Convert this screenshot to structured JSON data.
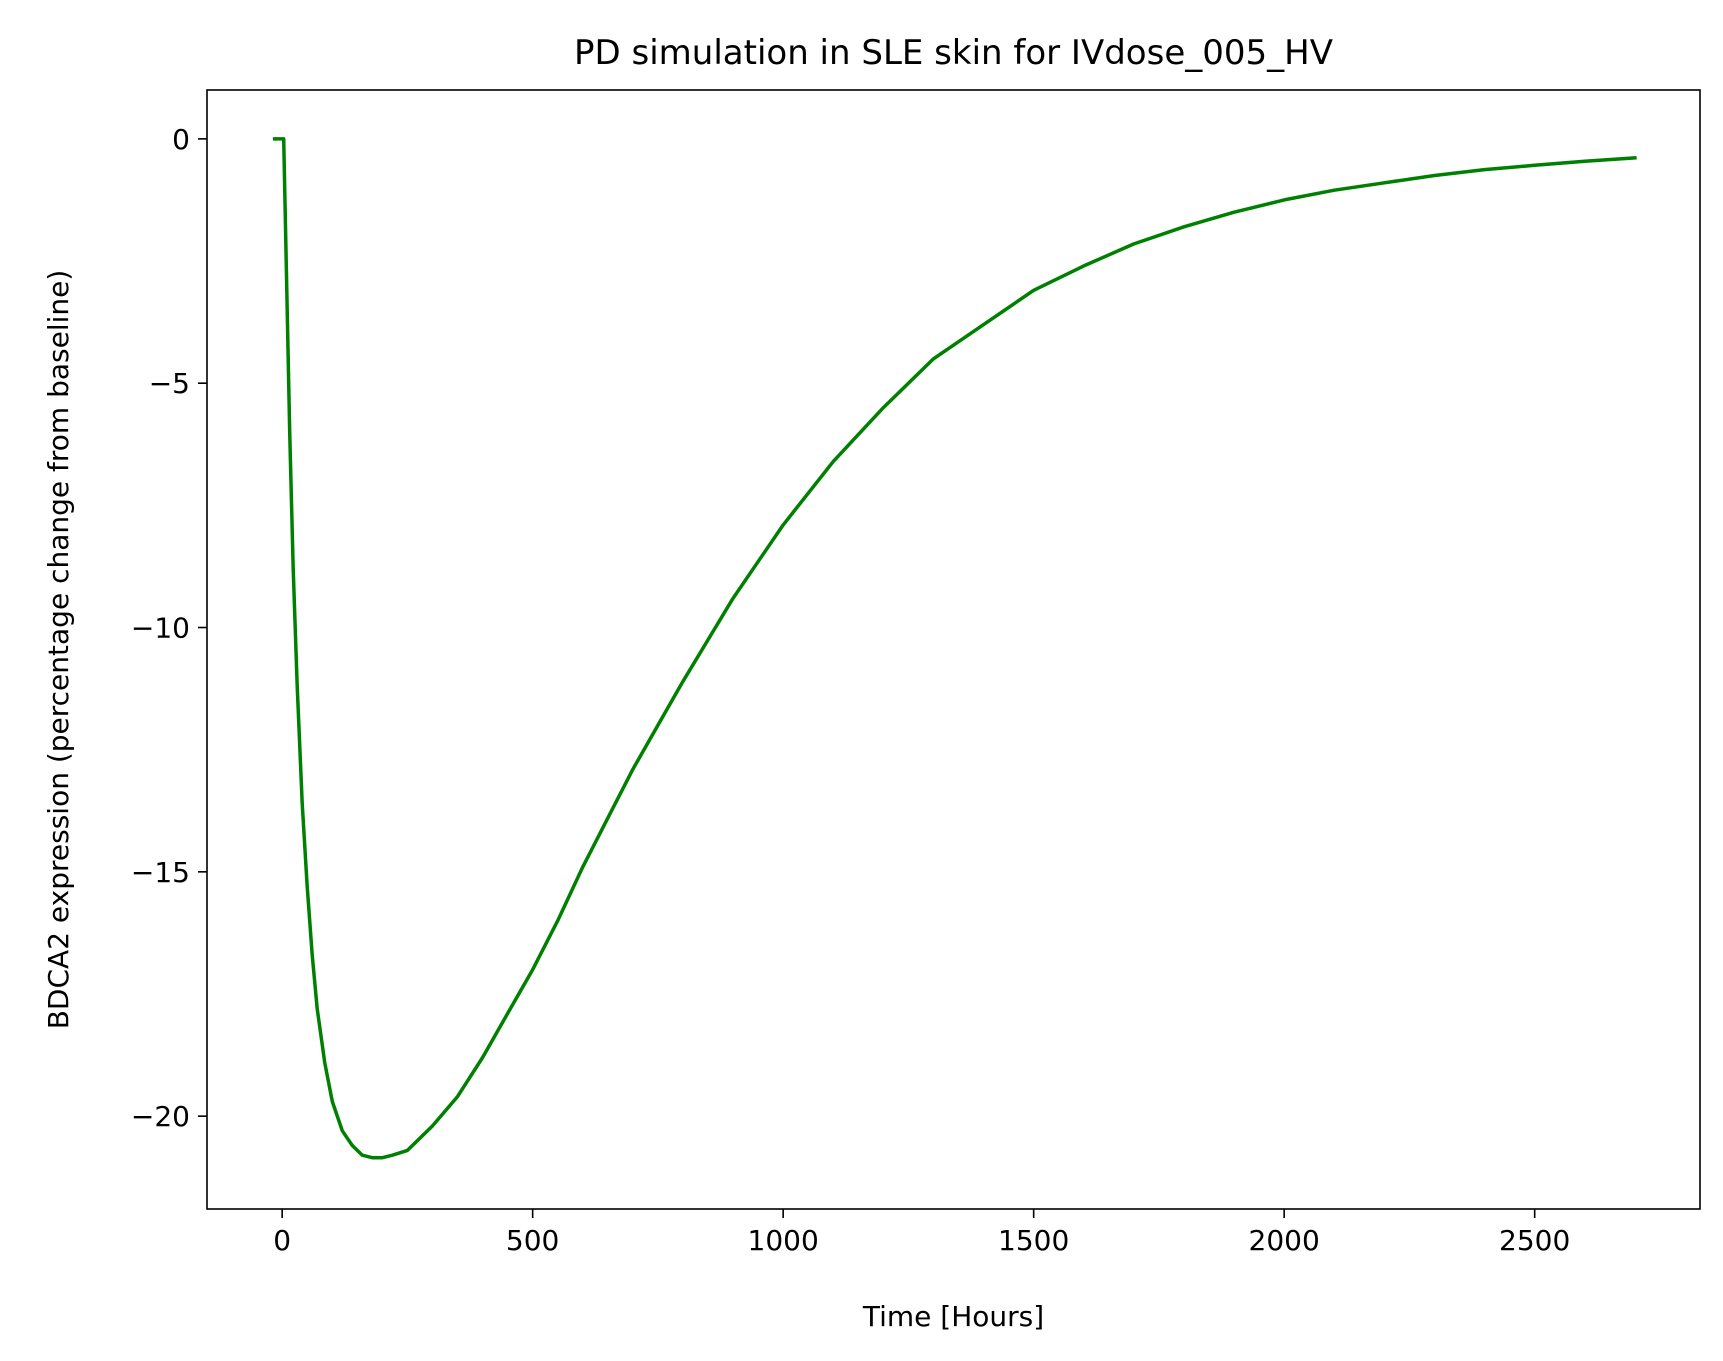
{
  "chart_data": {
    "type": "line",
    "title": "PD simulation in SLE skin for IVdose_005_HV",
    "xlabel": "Time [Hours]",
    "ylabel": "BDCA2 expression (percentage change from baseline)",
    "xlim": [
      -150,
      2830
    ],
    "ylim": [
      -21.9,
      1.0
    ],
    "grid": false,
    "legend": "none",
    "xticks": [
      0,
      500,
      1000,
      1500,
      2000,
      2500
    ],
    "xtick_labels": [
      "0",
      "500",
      "1000",
      "1500",
      "2000",
      "2500"
    ],
    "yticks": [
      0,
      -5,
      -10,
      -15,
      -20
    ],
    "ytick_labels": [
      "0",
      "−5",
      "−10",
      "−15",
      "−20"
    ],
    "series": [
      {
        "color": "#008000",
        "points": [
          [
            -15,
            0.0
          ],
          [
            0,
            0.0
          ],
          [
            3,
            0.0
          ],
          [
            8,
            -2.5
          ],
          [
            15,
            -6.0
          ],
          [
            22,
            -8.8
          ],
          [
            30,
            -11.2
          ],
          [
            40,
            -13.6
          ],
          [
            50,
            -15.3
          ],
          [
            60,
            -16.7
          ],
          [
            70,
            -17.8
          ],
          [
            85,
            -18.9
          ],
          [
            100,
            -19.7
          ],
          [
            120,
            -20.3
          ],
          [
            140,
            -20.6
          ],
          [
            160,
            -20.8
          ],
          [
            180,
            -20.85
          ],
          [
            200,
            -20.85
          ],
          [
            220,
            -20.8
          ],
          [
            250,
            -20.7
          ],
          [
            300,
            -20.2
          ],
          [
            350,
            -19.6
          ],
          [
            400,
            -18.8
          ],
          [
            450,
            -17.9
          ],
          [
            500,
            -17.0
          ],
          [
            550,
            -16.0
          ],
          [
            600,
            -14.9
          ],
          [
            650,
            -13.9
          ],
          [
            700,
            -12.9
          ],
          [
            750,
            -12.0
          ],
          [
            800,
            -11.1
          ],
          [
            900,
            -9.4
          ],
          [
            1000,
            -7.9
          ],
          [
            1100,
            -6.6
          ],
          [
            1200,
            -5.5
          ],
          [
            1300,
            -4.5
          ],
          [
            1400,
            -3.8
          ],
          [
            1500,
            -3.1
          ],
          [
            1600,
            -2.6
          ],
          [
            1700,
            -2.15
          ],
          [
            1800,
            -1.8
          ],
          [
            1900,
            -1.5
          ],
          [
            2000,
            -1.25
          ],
          [
            2100,
            -1.05
          ],
          [
            2200,
            -0.9
          ],
          [
            2300,
            -0.75
          ],
          [
            2400,
            -0.63
          ],
          [
            2500,
            -0.54
          ],
          [
            2600,
            -0.46
          ],
          [
            2700,
            -0.39
          ]
        ]
      }
    ]
  }
}
